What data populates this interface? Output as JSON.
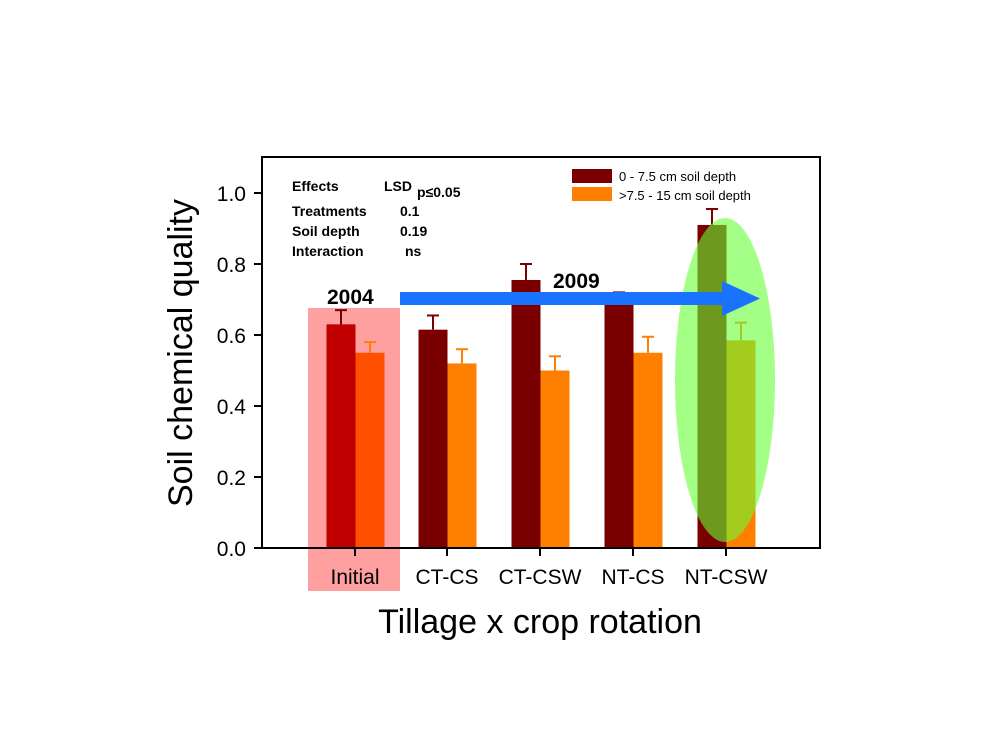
{
  "chart_data": {
    "type": "bar",
    "xlabel": "Tillage x crop rotation",
    "ylabel": "Soil chemical quality",
    "ylim": [
      0,
      1.1
    ],
    "yticks": [
      "0.0",
      "0.2",
      "0.4",
      "0.6",
      "0.8",
      "1.0"
    ],
    "categories": [
      "Initial",
      "CT-CS",
      "CT-CSW",
      "NT-CS",
      "NT-CSW"
    ],
    "series": [
      {
        "name": "0 - 7.5 cm soil depth",
        "color": "#7a0000",
        "values": [
          0.63,
          0.615,
          0.755,
          0.695,
          0.91
        ],
        "errors": [
          0.04,
          0.04,
          0.045,
          0.025,
          0.045
        ]
      },
      {
        "name": ">7.5 - 15 cm soil depth",
        "color": "#ff8000",
        "values": [
          0.55,
          0.52,
          0.5,
          0.55,
          0.585
        ],
        "errors": [
          0.03,
          0.04,
          0.04,
          0.045,
          0.05
        ]
      }
    ],
    "legend_position": "top-right",
    "grid": false,
    "stats_table": {
      "header_effects": "Effects",
      "header_lsd": "LSD",
      "header_lsd_sub": "p≤0.05",
      "rows": [
        {
          "effect": "Treatments",
          "value": "0.1"
        },
        {
          "effect": "Soil depth",
          "value": "0.19"
        },
        {
          "effect": "Interaction",
          "value": "ns"
        }
      ]
    },
    "annotations": {
      "year_start": "2004",
      "year_end": "2009",
      "arrow_color": "#1a73ff",
      "initial_highlight_color": "#ff8080",
      "best_highlight_color": "#66ff33"
    }
  }
}
